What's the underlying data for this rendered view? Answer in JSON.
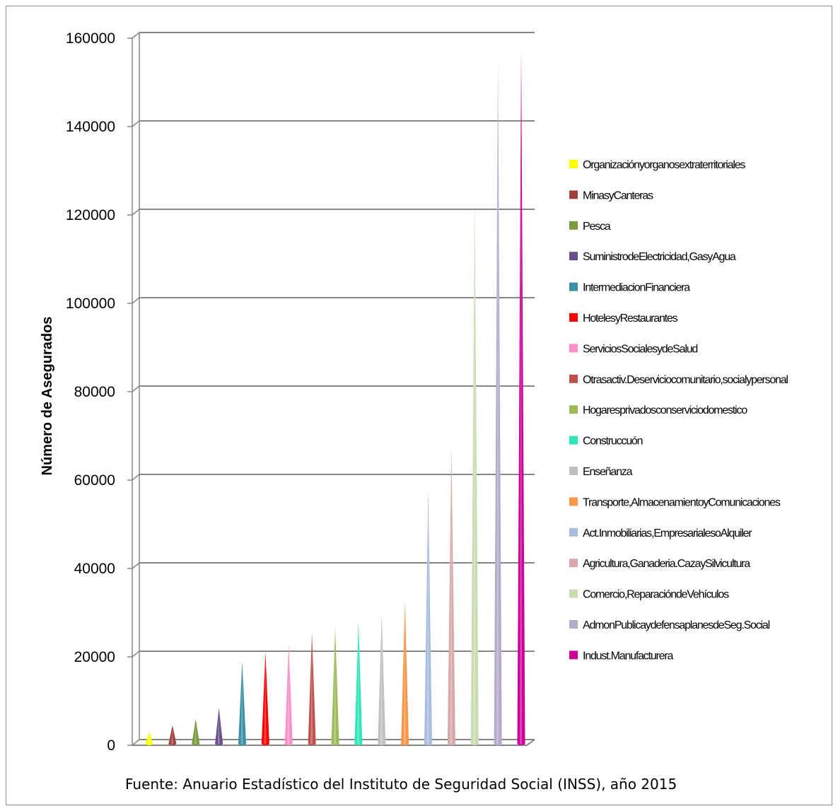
{
  "chart_data": {
    "type": "bar",
    "bar_shape": "cone",
    "ylabel": "Número de Asegurados",
    "xlabel": "",
    "ylim": [
      0,
      160000
    ],
    "y_ticks": [
      0,
      20000,
      40000,
      60000,
      80000,
      100000,
      120000,
      140000,
      160000
    ],
    "grid": true,
    "legend_position": "right",
    "source": "Fuente: Anuario Estadístico del Instituto de Seguridad Social (INSS), año 2015",
    "series": [
      {
        "name": "Organizaciónyorganosextraterritoriales",
        "value": 3000,
        "color": "#ffff00"
      },
      {
        "name": "MinasyCanteras",
        "value": 4500,
        "color": "#a0413d"
      },
      {
        "name": "Pesca",
        "value": 6000,
        "color": "#7a9a3e"
      },
      {
        "name": "SuministrodeElectricidad,GasyAgua",
        "value": 8500,
        "color": "#6a4e8c"
      },
      {
        "name": "IntermediacionFinanciera",
        "value": 19000,
        "color": "#3a8fa6"
      },
      {
        "name": "HotelesyRestaurantes",
        "value": 21000,
        "color": "#ff0000"
      },
      {
        "name": "ServiciosSocialesydeSalud",
        "value": 23000,
        "color": "#ff8fc8"
      },
      {
        "name": "Otrasactiv.Deserviciocomunitario,socialypersonal",
        "value": 25500,
        "color": "#c0504d"
      },
      {
        "name": "Hogaresprivadosconserviciodomestico",
        "value": 26500,
        "color": "#9bbb59"
      },
      {
        "name": "Construccuón",
        "value": 28000,
        "color": "#2ee6b8"
      },
      {
        "name": "Enseñanza",
        "value": 29500,
        "color": "#c0c0c0"
      },
      {
        "name": "Transporte,AlmacenamientoyComunicaciones",
        "value": 32500,
        "color": "#f79646"
      },
      {
        "name": "Act.Inmobiliarias,EmpresarialesoAlquiler",
        "value": 58000,
        "color": "#a8bce0"
      },
      {
        "name": "Agricultura,Ganaderia.CazaySilvicultura",
        "value": 67500,
        "color": "#d8a8a8"
      },
      {
        "name": "Comercio,ReparacióndeVehículos",
        "value": 123500,
        "color": "#c8dcb0"
      },
      {
        "name": "AdmonPublicaydefensaplanesdeSeg.Social",
        "value": 155000,
        "color": "#b4aacc"
      },
      {
        "name": "Indust.Manufacturera",
        "value": 157500,
        "color": "#cc0099"
      }
    ]
  }
}
